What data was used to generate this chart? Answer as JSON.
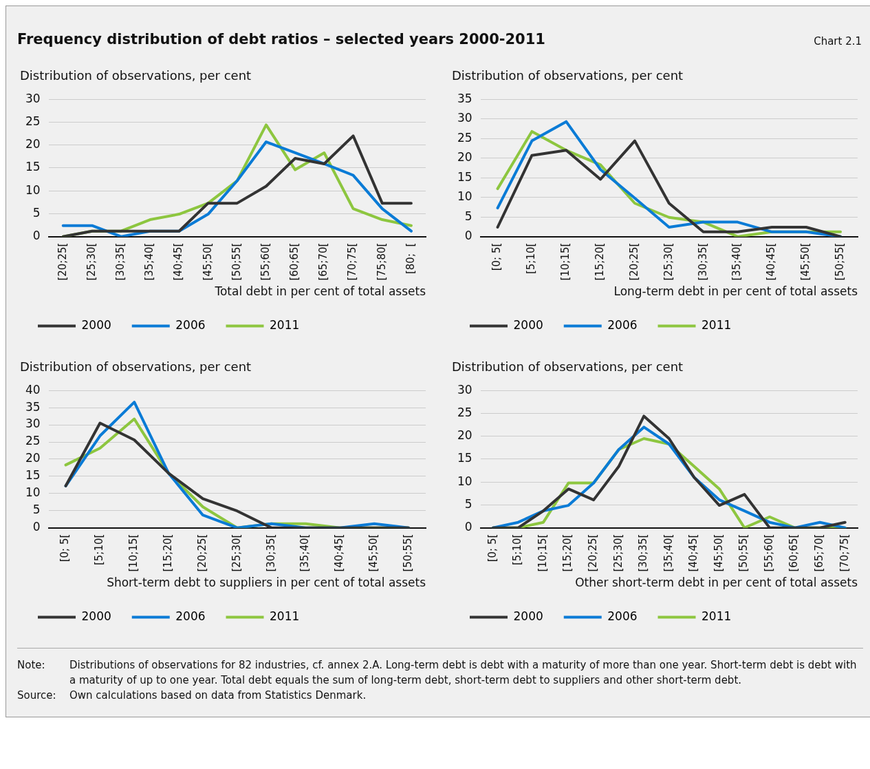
{
  "chart_data": [
    {
      "type": "line",
      "title": "Frequency distribution of debt ratios – selected years 2000-2011",
      "ylabel": "Distribution of observations, per cent",
      "xlabel": "Total debt in per cent of total assets",
      "categories": [
        "[20;25[",
        "[25;30[",
        "[30;35[",
        "[35;40[",
        "[40;45[",
        "[45;50[",
        "[50;55[",
        "[55;60[",
        "[60;65[",
        "[65;70[",
        "[70;75[",
        "[75;80[",
        "[80;  ["
      ],
      "series": [
        {
          "name": "2000",
          "color": "#333333",
          "values": [
            0,
            1.2,
            1.2,
            1.2,
            1.2,
            7.3,
            7.3,
            11,
            17.1,
            15.9,
            22,
            7.3,
            7.3
          ]
        },
        {
          "name": "2006",
          "color": "#0a7bd6",
          "values": [
            2.4,
            2.4,
            0,
            1.2,
            1.2,
            4.9,
            12.2,
            20.7,
            18.3,
            15.9,
            13.4,
            6.1,
            1.2
          ]
        },
        {
          "name": "2011",
          "color": "#8dc63f",
          "values": [
            0,
            1.2,
            1.2,
            3.7,
            4.9,
            7.3,
            12.2,
            24.4,
            14.6,
            18.3,
            6.1,
            3.7,
            2.4
          ]
        }
      ],
      "ylim": [
        0,
        30
      ],
      "yticks": [
        0,
        5,
        10,
        15,
        20,
        25,
        30
      ],
      "grid": "y",
      "legend": "bottom",
      "marker": "none",
      "line_style": "solid"
    },
    {
      "type": "line",
      "subtitle": "Chart 2.1",
      "ylabel": "Distribution of observations, per cent",
      "xlabel": "Long-term debt in per cent of total assets",
      "categories": [
        "[0; 5[",
        "[5;10[",
        "[10;15[",
        "[15;20[",
        "[20;25[",
        "[25;30[",
        "[30;35[",
        "[35;40[",
        "[40;45[",
        "[45;50[",
        "[50;55["
      ],
      "series": [
        {
          "name": "2000",
          "color": "#333333",
          "values": [
            2.4,
            20.7,
            22,
            14.6,
            24.4,
            8.5,
            1.2,
            1.2,
            2.4,
            2.4,
            0
          ]
        },
        {
          "name": "2006",
          "color": "#0a7bd6",
          "values": [
            7.3,
            24.4,
            29.3,
            17.1,
            9.8,
            2.4,
            3.7,
            3.7,
            1.2,
            1.2,
            0
          ]
        },
        {
          "name": "2011",
          "color": "#8dc63f",
          "values": [
            12.2,
            26.8,
            22,
            18.3,
            8.5,
            4.9,
            3.7,
            0,
            1.2,
            1.2,
            1.2
          ]
        }
      ],
      "ylim": [
        0,
        35
      ],
      "yticks": [
        0,
        5,
        10,
        15,
        20,
        25,
        30,
        35
      ],
      "grid": "y",
      "legend": "bottom",
      "marker": "none",
      "line_style": "solid"
    },
    {
      "type": "line",
      "ylabel": "Distribution of observations, per cent",
      "xlabel": "Short-term debt to suppliers in per cent of total assets",
      "categories": [
        "[0; 5[",
        "[5;10[",
        "[10;15[",
        "[15;20[",
        "[20;25[",
        "[25;30[",
        "[30;35[",
        "[35;40[",
        "[40;45[",
        "[45;50[",
        "[50;55["
      ],
      "series": [
        {
          "name": "2000",
          "color": "#333333",
          "values": [
            12.2,
            30.5,
            25.6,
            15.9,
            8.5,
            4.9,
            0,
            0,
            0,
            0,
            0
          ]
        },
        {
          "name": "2006",
          "color": "#0a7bd6",
          "values": [
            12.2,
            26.8,
            36.6,
            15.9,
            3.7,
            0,
            1.2,
            0,
            0,
            1.2,
            0
          ]
        },
        {
          "name": "2011",
          "color": "#8dc63f",
          "values": [
            18.3,
            23.2,
            31.7,
            15.9,
            6.1,
            0,
            1.2,
            1.2,
            0,
            0,
            0
          ]
        }
      ],
      "ylim": [
        0,
        40
      ],
      "yticks": [
        0,
        5,
        10,
        15,
        20,
        25,
        30,
        35,
        40
      ],
      "grid": "y",
      "legend": "bottom",
      "marker": "none",
      "line_style": "solid"
    },
    {
      "type": "line",
      "ylabel": "Distribution of observations, per cent",
      "xlabel": "Other short-term debt in per cent of total assets",
      "categories": [
        "[0; 5[",
        "[5;10[",
        "[10;15[",
        "[15;20[",
        "[20;25[",
        "[25;30[",
        "[30;35[",
        "[35;40[",
        "[40;45[",
        "[45;50[",
        "[50;55[",
        "[55;60[",
        "[60;65[",
        "[65;70[",
        "[70;75["
      ],
      "series": [
        {
          "name": "2000",
          "color": "#333333",
          "values": [
            0,
            0,
            3.7,
            8.5,
            6.1,
            13.4,
            24.4,
            19.5,
            11,
            4.9,
            7.3,
            0,
            0,
            0,
            1.2
          ]
        },
        {
          "name": "2006",
          "color": "#0a7bd6",
          "values": [
            0,
            1.2,
            3.7,
            4.9,
            9.8,
            17.1,
            22,
            18.3,
            11,
            6.1,
            3.7,
            1.2,
            0,
            1.2,
            0
          ]
        },
        {
          "name": "2011",
          "color": "#8dc63f",
          "values": [
            0,
            0,
            1.2,
            9.8,
            9.8,
            17.1,
            19.5,
            18.3,
            13.4,
            8.5,
            0,
            2.4,
            0,
            0,
            0
          ]
        }
      ],
      "ylim": [
        0,
        30
      ],
      "yticks": [
        0,
        5,
        10,
        15,
        20,
        25,
        30
      ],
      "grid": "y",
      "legend": "bottom",
      "marker": "none",
      "line_style": "solid",
      "annotations": [
        "Note:\tDistributions of observations for 82 industries, cf. annex 2.A. Long-term debt is debt with a maturity of more than one year. Short-term debt is debt with a maturity of up to one year. Total debt equals the sum of long-term debt, short-term debt to suppliers and other short-term debt.",
        "Source:\tOwn calculations based on data from Statistics Denmark."
      ]
    }
  ]
}
